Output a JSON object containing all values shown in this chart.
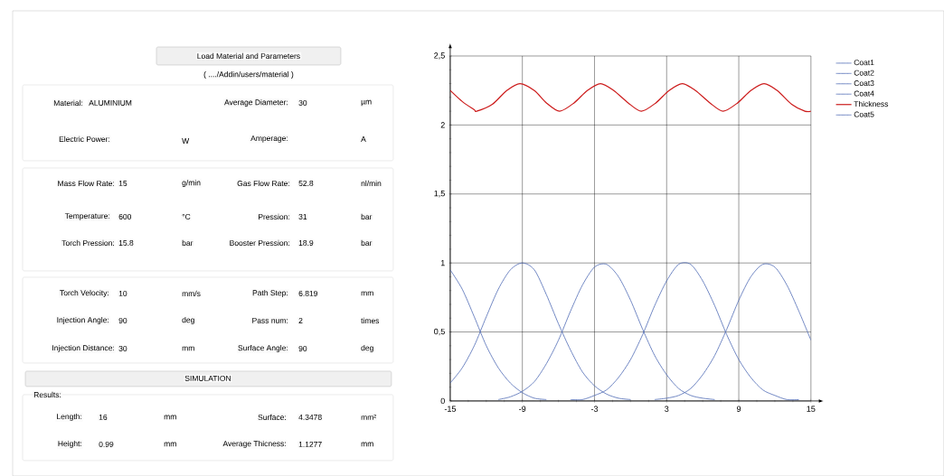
{
  "chart_data": {
    "type": "line",
    "x": [
      -15,
      -14,
      -13,
      -12,
      -11,
      -10,
      -9,
      -8,
      -7,
      -6,
      -5,
      -4,
      -3,
      -2,
      -1,
      0,
      1,
      2,
      3,
      4,
      5,
      6,
      7,
      8,
      9,
      10,
      11,
      12,
      13,
      14,
      15
    ],
    "series": [
      {
        "name": "Coat1",
        "color": "#4f6bb5",
        "values": [
          0.95,
          0.81,
          0.61,
          0.4,
          0.24,
          0.13,
          0.06,
          0.02,
          0.01,
          null,
          null,
          null,
          null,
          null,
          null,
          null,
          null,
          null,
          null,
          null,
          null,
          null,
          null,
          null,
          null,
          null,
          null,
          null,
          null,
          null,
          null
        ]
      },
      {
        "name": "Coat2",
        "color": "#4f6bb5",
        "values": [
          0.13,
          0.24,
          0.4,
          0.61,
          0.81,
          0.95,
          1.0,
          0.95,
          0.77,
          0.56,
          0.37,
          0.21,
          0.11,
          0.05,
          0.02,
          0.01,
          null,
          null,
          null,
          null,
          null,
          null,
          null,
          null,
          null,
          null,
          null,
          null,
          null,
          null,
          null
        ]
      },
      {
        "name": "Coat3",
        "color": "#4f6bb5",
        "values": [
          null,
          null,
          null,
          null,
          0.01,
          0.03,
          0.07,
          0.14,
          0.27,
          0.44,
          0.65,
          0.84,
          0.97,
          0.99,
          0.9,
          0.73,
          0.52,
          0.33,
          0.19,
          0.09,
          0.04,
          0.02,
          0.01,
          null,
          null,
          null,
          null,
          null,
          null,
          null,
          null
        ]
      },
      {
        "name": "Coat4",
        "color": "#4f6bb5",
        "values": [
          null,
          null,
          null,
          null,
          null,
          null,
          null,
          null,
          null,
          null,
          0.01,
          0.01,
          0.04,
          0.08,
          0.17,
          0.3,
          0.48,
          0.69,
          0.87,
          0.99,
          0.99,
          0.87,
          0.69,
          0.48,
          0.3,
          0.17,
          0.08,
          0.04,
          0.01,
          0.01,
          null
        ]
      },
      {
        "name": "Thickness",
        "color": "#cc1a1a",
        "x": [
          -15,
          -14,
          -13,
          -12.8,
          -11.5,
          -10.3,
          -9.2,
          -8,
          -7,
          -5.9,
          -4.7,
          -3.6,
          -2.5,
          -1.4,
          -0.2,
          0.9,
          2.1,
          3.2,
          4.3,
          5.4,
          6.6,
          7.7,
          8.9,
          10,
          11.1,
          12.2,
          13.4,
          14.5,
          15
        ],
        "values": [
          2.25,
          2.17,
          2.11,
          2.1,
          2.15,
          2.25,
          2.3,
          2.25,
          2.16,
          2.1,
          2.16,
          2.25,
          2.3,
          2.25,
          2.16,
          2.1,
          2.16,
          2.25,
          2.3,
          2.25,
          2.16,
          2.1,
          2.16,
          2.25,
          2.3,
          2.25,
          2.15,
          2.1,
          2.1
        ]
      },
      {
        "name": "Coat5",
        "color": "#4f6bb5",
        "values": [
          null,
          null,
          null,
          null,
          null,
          null,
          null,
          null,
          null,
          null,
          null,
          null,
          null,
          null,
          null,
          null,
          null,
          0.01,
          0.02,
          0.04,
          0.09,
          0.19,
          0.33,
          0.52,
          0.73,
          0.9,
          0.99,
          0.97,
          0.84,
          0.65,
          0.44
        ]
      }
    ],
    "xlim": [
      -15,
      15
    ],
    "xticks": [
      -15,
      -9,
      -3,
      3,
      9,
      15
    ],
    "ylim": [
      0,
      2.5
    ],
    "yticks": [
      0,
      {
        "value": 0.5,
        "label": "0,5"
      },
      1,
      {
        "value": 1.5,
        "label": "1,5"
      },
      2,
      {
        "value": 2.5,
        "label": "2,5"
      }
    ],
    "grid": true,
    "legend": "top right",
    "marker": "none",
    "line_style": "solid",
    "annotations": [
      "Load Material and Parameters",
      "( ..../Addin/users/material )",
      "Material:",
      "ALUMINIUM",
      "Average Diameter:",
      "30",
      "µm",
      "Electric Power:",
      "W",
      "Amperage:",
      "A",
      "Mass Flow Rate:",
      "15",
      "g/min",
      "Gas Flow Rate:",
      "52.8",
      "nl/min",
      "Temperature:",
      "600",
      "°C",
      "Pression:",
      "31",
      "bar",
      "Torch Pression:",
      "15.8",
      "bar",
      "Booster Pression:",
      "18.9",
      "bar",
      "Torch Velocity:",
      "10",
      "mm/s",
      "Path Step:",
      "6.819",
      "mm",
      "Injection Angle:",
      "90",
      "deg",
      "Pass num:",
      "2",
      "times",
      "Injection Distance:",
      "30",
      "mm",
      "Surface Angle:",
      "90",
      "deg",
      "SIMULATION",
      "Results:",
      "Length:",
      "16",
      "mm",
      "Surface:",
      "4.3478",
      "mm²",
      "Height:",
      "0.99",
      "mm",
      "Average Thicness:",
      "1.1277",
      "mm"
    ]
  }
}
